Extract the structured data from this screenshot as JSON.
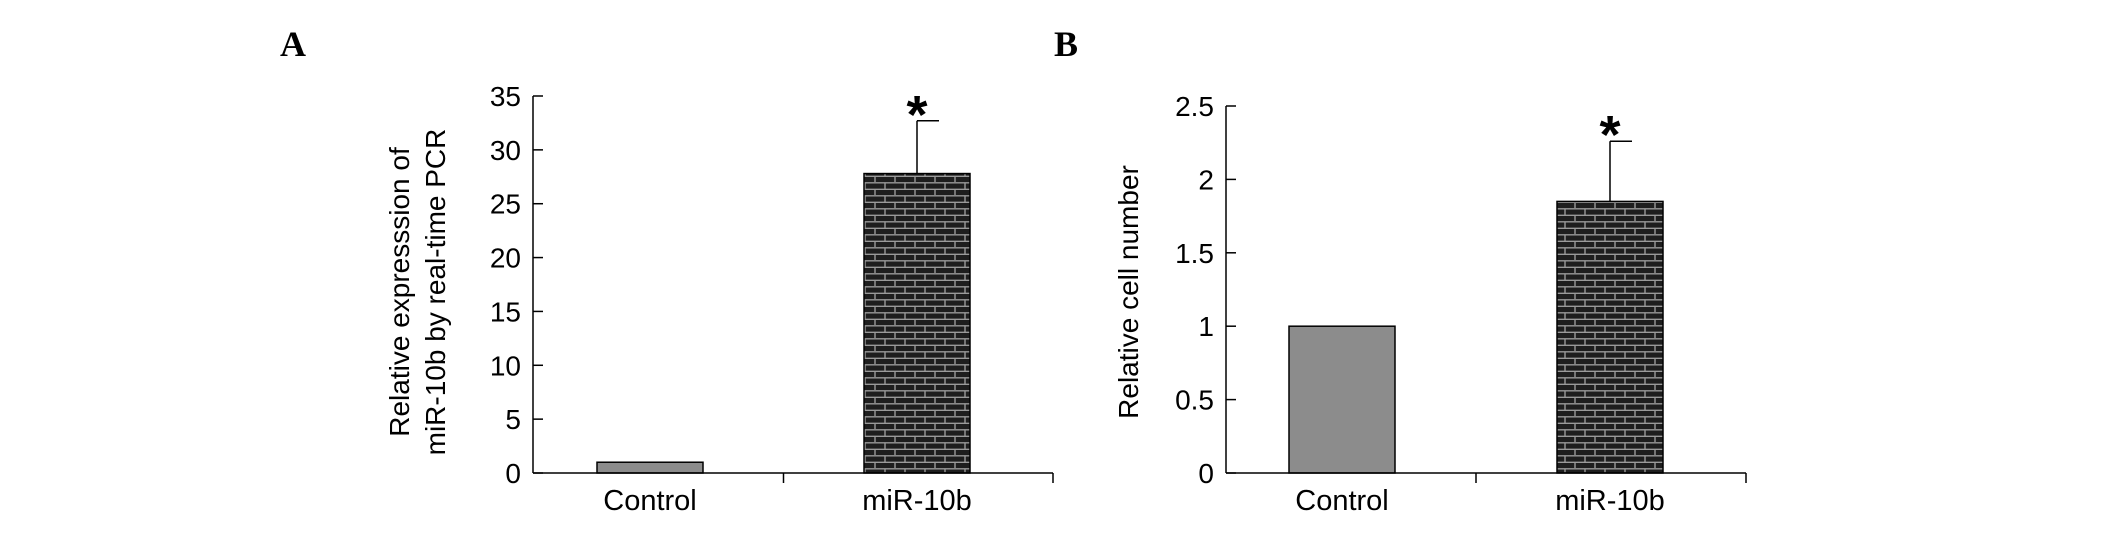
{
  "colors": {
    "control_bar": "#8c8c8c",
    "treatment_bar": "#1e1e1e",
    "treatment_brick_lines": "#9a9a9a",
    "axis": "#000000"
  },
  "chart_data": [
    {
      "panel": "A",
      "type": "bar",
      "categories": [
        "Control",
        "miR-10b"
      ],
      "values": [
        1,
        27.8
      ],
      "error_upper": [
        0,
        4.9
      ],
      "significance": [
        "",
        "*"
      ],
      "ylabel_lines": [
        "Relative expresssion of",
        "miR-10b by real-time PCR"
      ],
      "ylim": [
        0,
        35
      ],
      "yticks": [
        0,
        5,
        10,
        15,
        20,
        25,
        30,
        35
      ],
      "ytick_labels": [
        "0",
        "5",
        "10",
        "15",
        "20",
        "25",
        "30",
        "35"
      ],
      "grid": false
    },
    {
      "panel": "B",
      "type": "bar",
      "categories": [
        "Control",
        "miR-10b"
      ],
      "values": [
        1,
        1.85
      ],
      "error_upper": [
        0,
        0.41
      ],
      "significance": [
        "",
        "*"
      ],
      "ylabel_lines": [
        "Relative cell number"
      ],
      "ylim": [
        0,
        2.5
      ],
      "yticks": [
        0,
        0.5,
        1,
        1.5,
        2,
        2.5
      ],
      "ytick_labels": [
        "0",
        "0.5",
        "1",
        "1.5",
        "2",
        "2.5"
      ],
      "grid": false
    }
  ]
}
